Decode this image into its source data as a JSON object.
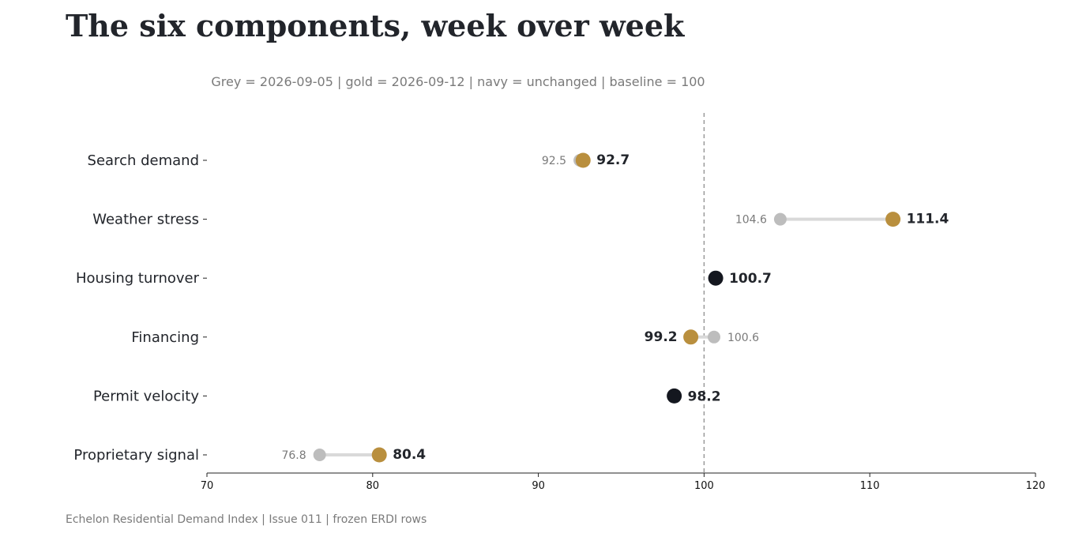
{
  "chart_data": {
    "type": "dumbbell",
    "title": "The six components, week over week",
    "subtitle": "Grey = 2026-09-05  |  gold = 2026-09-12  |  navy = unchanged  |  baseline = 100",
    "footer": "Echelon Residential Demand Index  |  Issue 011  |  frozen ERDI rows",
    "xlim": [
      70,
      120
    ],
    "xticks": [
      70,
      80,
      90,
      100,
      110,
      120
    ],
    "baseline": 100,
    "colors": {
      "previous": "#bdbdbd",
      "current": "#b98f3e",
      "unchanged": "#14171f",
      "connector": "#d9d9d9",
      "baseline": "#999999"
    },
    "series": [
      {
        "name": "2026-09-05"
      },
      {
        "name": "2026-09-12"
      }
    ],
    "rows": [
      {
        "label": "Search demand",
        "prev": 92.5,
        "curr": 92.7,
        "status": "changed"
      },
      {
        "label": "Weather stress",
        "prev": 104.6,
        "curr": 111.4,
        "status": "changed"
      },
      {
        "label": "Housing turnover",
        "prev": 100.7,
        "curr": 100.7,
        "status": "unchanged"
      },
      {
        "label": "Financing",
        "prev": 100.6,
        "curr": 99.2,
        "status": "changed"
      },
      {
        "label": "Permit velocity",
        "prev": 98.2,
        "curr": 98.2,
        "status": "unchanged"
      },
      {
        "label": "Proprietary signal",
        "prev": 76.8,
        "curr": 80.4,
        "status": "changed"
      }
    ]
  }
}
